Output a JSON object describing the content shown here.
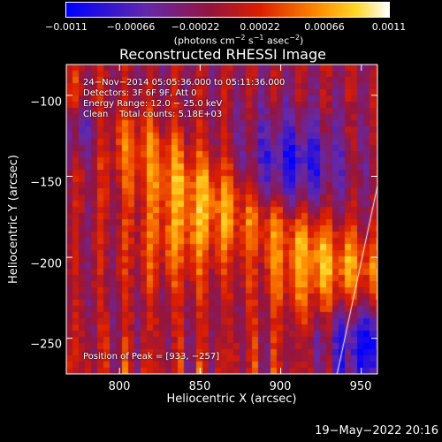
{
  "chart_data": {
    "type": "heatmap",
    "title": "Reconstructed RHESSI Image",
    "xlabel": "Heliocentric X (arcsec)",
    "ylabel": "Heliocentric Y (arcsec)",
    "xlim": [
      767,
      960
    ],
    "ylim": [
      -272,
      -81
    ],
    "x_ticks": [
      800,
      850,
      900,
      950
    ],
    "y_ticks": [
      -100,
      -150,
      -200,
      -250
    ],
    "x_tick_labels": [
      "800",
      "850",
      "900",
      "950"
    ],
    "y_tick_labels": [
      "−100",
      "−150",
      "−200",
      "−250"
    ],
    "colorbar": {
      "range": [
        -0.0011,
        0.0011
      ],
      "tick_values": [
        -0.0011,
        -0.00066,
        -0.00022,
        0.00022,
        0.00066,
        0.0011
      ],
      "tick_labels": [
        "−0.0011",
        "−0.00066",
        "−0.00022",
        "0.00022",
        "0.00066",
        "0.0011"
      ],
      "units_prefix": "(photons cm",
      "units_exp1": "−2",
      "units_mid1": " s",
      "units_exp2": "−1",
      "units_mid2": " asec",
      "units_exp3": "−2",
      "units_suffix": ")",
      "colormap": "blue-purple-red-orange-yellow-white"
    },
    "annotations": {
      "time": "24−Nov−2014 05:05:36.000 to 05:11:36.000",
      "detectors": "Detectors: 3F 6F 9F, Att 0",
      "energy": "Energy Range: 12.0 − 25.0 keV",
      "method": "Clean    Total counts: 5.18E+03",
      "peak": "Position of Peak = [933, −257]"
    },
    "limb_line": {
      "from": [
        935,
        -272
      ],
      "to": [
        960,
        -156
      ]
    },
    "colors": {
      "background": "#000000",
      "text": "#ffffff",
      "low": "#0000ff",
      "mid_low": "#6a2fa8",
      "mid": "#d42a00",
      "high": "#ffb000",
      "max": "#ffffff"
    }
  },
  "footer": {
    "datestamp": "19−May−2022 20:16"
  }
}
